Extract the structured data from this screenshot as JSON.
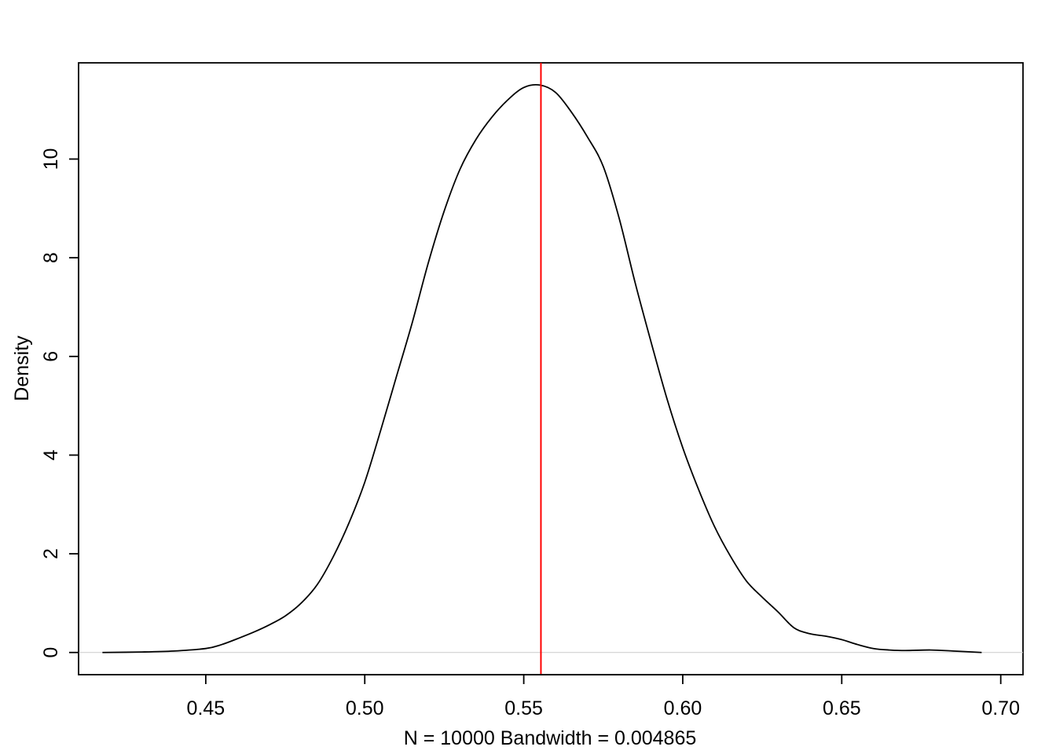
{
  "chart_data": {
    "type": "line",
    "title": "",
    "xlabel": "N = 10000   Bandwidth = 0.004865",
    "ylabel": "Density",
    "xlim": [
      0.41,
      0.707
    ],
    "ylim": [
      -0.45,
      11.95
    ],
    "x_ticks": [
      {
        "value": 0.45,
        "label": "0.45"
      },
      {
        "value": 0.5,
        "label": "0.50"
      },
      {
        "value": 0.55,
        "label": "0.55"
      },
      {
        "value": 0.6,
        "label": "0.60"
      },
      {
        "value": 0.65,
        "label": "0.65"
      },
      {
        "value": 0.7,
        "label": "0.70"
      }
    ],
    "y_ticks": [
      {
        "value": 0,
        "label": "0"
      },
      {
        "value": 2,
        "label": "2"
      },
      {
        "value": 4,
        "label": "4"
      },
      {
        "value": 6,
        "label": "6"
      },
      {
        "value": 8,
        "label": "8"
      },
      {
        "value": 10,
        "label": "10"
      }
    ],
    "grid": false,
    "legend": "none",
    "series": [
      {
        "color": "#000000",
        "points": [
          [
            0.4175,
            0.0
          ],
          [
            0.43,
            0.01
          ],
          [
            0.44,
            0.03
          ],
          [
            0.45,
            0.08
          ],
          [
            0.455,
            0.16
          ],
          [
            0.46,
            0.28
          ],
          [
            0.465,
            0.41
          ],
          [
            0.47,
            0.56
          ],
          [
            0.475,
            0.74
          ],
          [
            0.48,
            1.0
          ],
          [
            0.485,
            1.37
          ],
          [
            0.49,
            1.93
          ],
          [
            0.495,
            2.62
          ],
          [
            0.5,
            3.45
          ],
          [
            0.505,
            4.5
          ],
          [
            0.51,
            5.6
          ],
          [
            0.515,
            6.7
          ],
          [
            0.52,
            7.9
          ],
          [
            0.525,
            8.95
          ],
          [
            0.53,
            9.8
          ],
          [
            0.535,
            10.4
          ],
          [
            0.54,
            10.85
          ],
          [
            0.545,
            11.2
          ],
          [
            0.55,
            11.45
          ],
          [
            0.555,
            11.5
          ],
          [
            0.56,
            11.35
          ],
          [
            0.565,
            10.95
          ],
          [
            0.57,
            10.45
          ],
          [
            0.575,
            9.85
          ],
          [
            0.58,
            8.8
          ],
          [
            0.585,
            7.5
          ],
          [
            0.59,
            6.3
          ],
          [
            0.595,
            5.15
          ],
          [
            0.6,
            4.15
          ],
          [
            0.605,
            3.3
          ],
          [
            0.61,
            2.55
          ],
          [
            0.615,
            1.95
          ],
          [
            0.62,
            1.45
          ],
          [
            0.625,
            1.12
          ],
          [
            0.63,
            0.82
          ],
          [
            0.635,
            0.5
          ],
          [
            0.64,
            0.38
          ],
          [
            0.645,
            0.33
          ],
          [
            0.65,
            0.26
          ],
          [
            0.655,
            0.16
          ],
          [
            0.66,
            0.08
          ],
          [
            0.665,
            0.05
          ],
          [
            0.67,
            0.04
          ],
          [
            0.678,
            0.05
          ],
          [
            0.685,
            0.03
          ],
          [
            0.694,
            0.0
          ]
        ]
      }
    ],
    "baseline": {
      "y": 0,
      "color": "#cccccc"
    },
    "vline": {
      "x": 0.5554,
      "color": "#ff0000"
    }
  }
}
